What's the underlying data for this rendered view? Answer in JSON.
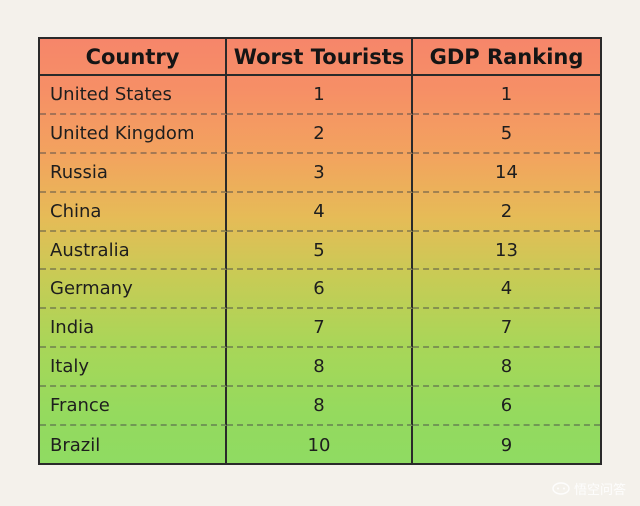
{
  "table": {
    "headers": [
      "Country",
      "Worst Tourists",
      "GDP Ranking"
    ],
    "rows": [
      {
        "country": "United States",
        "worst": "1",
        "gdp": "1"
      },
      {
        "country": "United Kingdom",
        "worst": "2",
        "gdp": "5"
      },
      {
        "country": "Russia",
        "worst": "3",
        "gdp": "14"
      },
      {
        "country": "China",
        "worst": "4",
        "gdp": "2"
      },
      {
        "country": "Australia",
        "worst": "5",
        "gdp": "13"
      },
      {
        "country": "Germany",
        "worst": "6",
        "gdp": "4"
      },
      {
        "country": "India",
        "worst": "7",
        "gdp": "7"
      },
      {
        "country": "Italy",
        "worst": "8",
        "gdp": "8"
      },
      {
        "country": "France",
        "worst": "8",
        "gdp": "6"
      },
      {
        "country": "Brazil",
        "worst": "10",
        "gdp": "9"
      }
    ]
  },
  "watermark": {
    "text": "悟空问答",
    "icon": "chat-bubble-icon"
  }
}
